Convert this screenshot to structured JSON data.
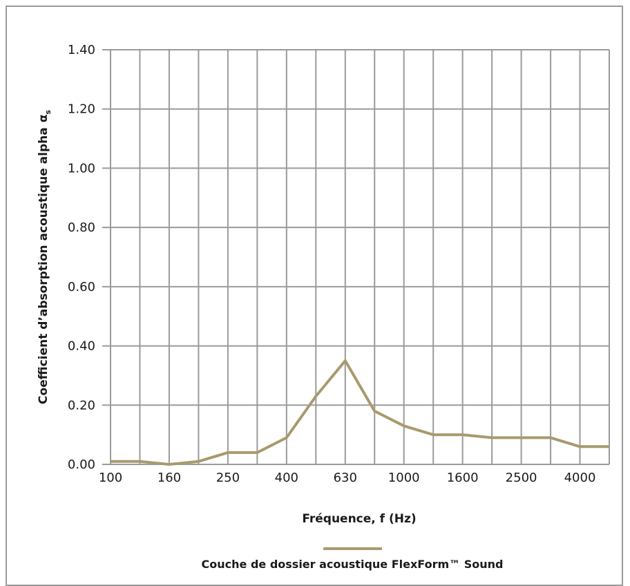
{
  "chart_data": {
    "type": "line",
    "xlabel": "Fréquence, f (Hz)",
    "ylabel_main": "Coefficient d’absorption acoustique alpha",
    "ylabel_symbol": "α",
    "ylabel_subscript": "s",
    "x": [
      100,
      125,
      160,
      200,
      250,
      315,
      400,
      500,
      630,
      800,
      1000,
      1250,
      1600,
      2000,
      2500,
      3150,
      4000,
      5000
    ],
    "x_tick_labels": [
      "100",
      "160",
      "250",
      "400",
      "630",
      "1000",
      "1600",
      "2500",
      "4000"
    ],
    "ylim": [
      0,
      1.4
    ],
    "y_ticks": [
      0,
      0.2,
      0.4,
      0.6,
      0.8,
      1.0,
      1.2,
      1.4
    ],
    "y_tick_labels": [
      "0.00",
      "0.20",
      "0.40",
      "0.60",
      "0.80",
      "1.00",
      "1.20",
      "1.40"
    ],
    "grid": true,
    "legend_position": "bottom",
    "series": [
      {
        "name": "Couche de dossier acoustique FlexForm™ Sound",
        "color": "#a89a6e",
        "values": [
          0.01,
          0.01,
          0.0,
          0.01,
          0.04,
          0.04,
          0.09,
          0.23,
          0.35,
          0.18,
          0.13,
          0.1,
          0.1,
          0.09,
          0.09,
          0.09,
          0.06,
          0.06
        ]
      }
    ]
  }
}
